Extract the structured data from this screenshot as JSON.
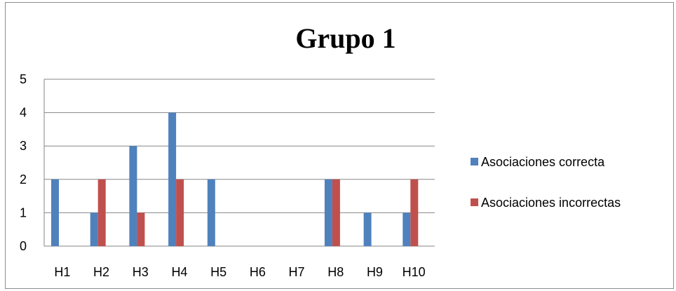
{
  "chart_data": {
    "type": "bar",
    "title": "Grupo 1",
    "xlabel": "",
    "ylabel": "",
    "categories": [
      "H1",
      "H2",
      "H3",
      "H4",
      "H5",
      "H6",
      "H7",
      "H8",
      "H9",
      "H10"
    ],
    "series": [
      {
        "name": "Asociaciones correcta",
        "color": "#4f81bd",
        "values": [
          2,
          1,
          3,
          4,
          2,
          0,
          0,
          2,
          1,
          1
        ]
      },
      {
        "name": "Asociaciones incorrectas",
        "color": "#c0504d",
        "values": [
          0,
          2,
          1,
          2,
          0,
          0,
          0,
          2,
          0,
          2
        ]
      }
    ],
    "ylim": [
      0,
      5
    ],
    "yticks": [
      "0",
      "1",
      "2",
      "3",
      "4",
      "5"
    ],
    "grid": true,
    "legend_position": "right"
  }
}
